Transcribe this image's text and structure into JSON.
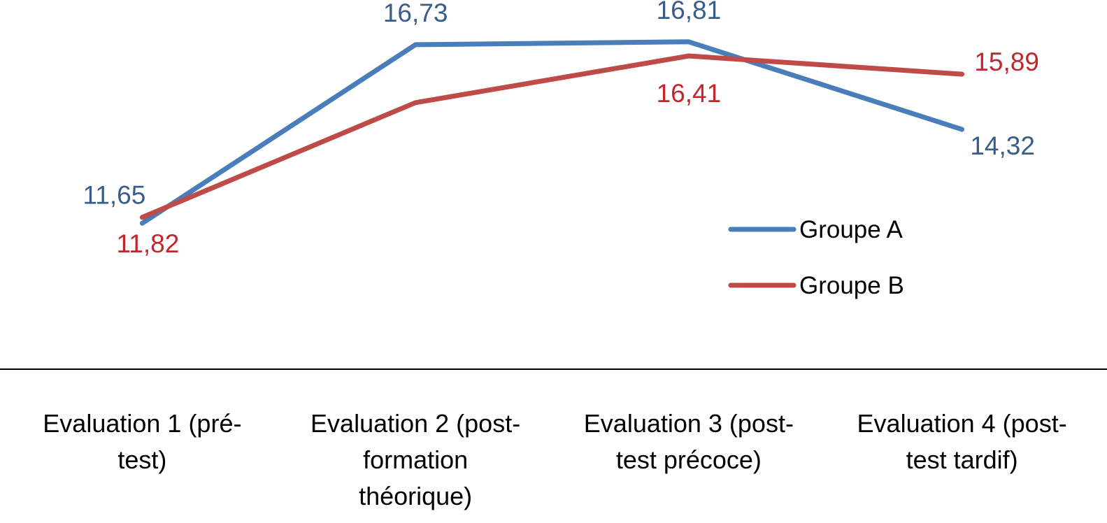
{
  "chart_data": {
    "type": "line",
    "categories": [
      [
        "Evaluation 1 (pré-",
        "test)"
      ],
      [
        "Evaluation 2 (post-",
        "formation",
        "théorique)"
      ],
      [
        "Evaluation 3 (post-",
        "test précoce)"
      ],
      [
        "Evaluation 4 (post-",
        "test tardif)"
      ]
    ],
    "series": [
      {
        "name": "Groupe A",
        "color": "#4a7ebb",
        "label_color": "#385d8a",
        "values": [
          11.65,
          16.73,
          16.81,
          14.32
        ],
        "data_labels": [
          "11,65",
          "16,73",
          "16,81",
          "14,32"
        ]
      },
      {
        "name": "Groupe B",
        "color": "#be4b48",
        "label_color": "#c0272d",
        "values": [
          11.82,
          15.08,
          16.41,
          15.89
        ],
        "data_labels": [
          "11,82",
          "",
          "16,41",
          "15,89"
        ]
      }
    ],
    "ylim": [
      7.5,
      18.0
    ],
    "grid": false,
    "legend_position": "right"
  }
}
